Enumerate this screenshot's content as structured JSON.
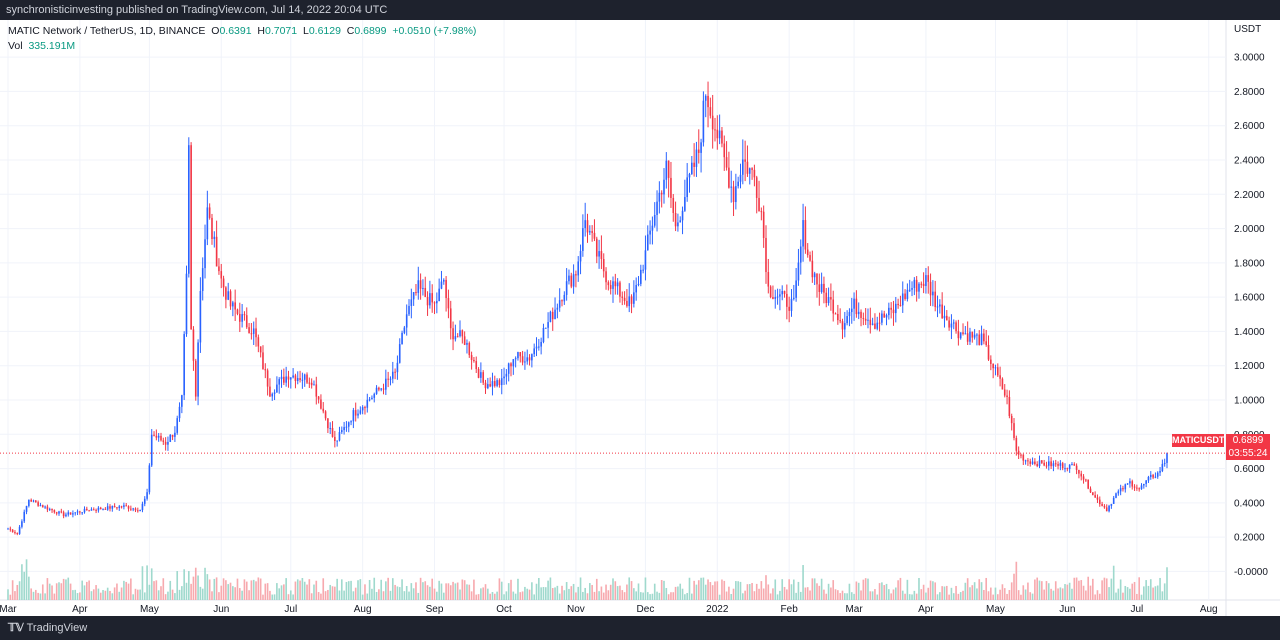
{
  "header": {
    "published_line": "synchronisticinvesting published on TradingView.com, Jul 14, 2022 20:04 UTC"
  },
  "legend": {
    "symbol_line_prefix": "MATIC Network / TetherUS, 1D, BINANCE",
    "ohlc": {
      "o_label": "O",
      "o": "0.6391",
      "h_label": "H",
      "h": "0.7071",
      "l_label": "L",
      "l": "0.6129",
      "c_label": "C",
      "c": "0.6899",
      "change": "+0.0510 (+7.98%)"
    },
    "vol_label": "Vol",
    "vol_value": "335.191M"
  },
  "axis": {
    "currency": "USDT"
  },
  "price_badge": {
    "symbol": "MATICUSDT",
    "price": "0.6899",
    "countdown": "03:55:24"
  },
  "footer": {
    "brand": "TradingView"
  },
  "colors": {
    "up": "#2962ff",
    "down": "#f23645",
    "vol_up": "#9fd9cd",
    "vol_down": "#f7a9ae",
    "grid": "#f0f3fa",
    "last_price_line": "#f23645"
  },
  "chart_data": {
    "type": "candlestick",
    "title": "MATIC Network / TetherUS, 1D, BINANCE",
    "ylabel": "USDT",
    "ylim": [
      -0.05,
      3.1
    ],
    "yticks": [
      3.0,
      2.8,
      2.6,
      2.4,
      2.2,
      2.0,
      1.8,
      1.6,
      1.4,
      1.2,
      1.0,
      0.8,
      0.6,
      0.4,
      0.2,
      0.0
    ],
    "ytick_labels": [
      "3.0000",
      "2.8000",
      "2.6000",
      "2.4000",
      "2.2000",
      "2.0000",
      "1.8000",
      "1.6000",
      "1.4000",
      "1.2000",
      "1.0000",
      "0.8000",
      "0.6000",
      "0.4000",
      "0.2000",
      "-0.0000"
    ],
    "x_tick_labels": [
      "Mar",
      "Apr",
      "May",
      "Jun",
      "Jul",
      "Aug",
      "Sep",
      "Oct",
      "Nov",
      "Dec",
      "2022",
      "Feb",
      "Mar",
      "Apr",
      "May",
      "Jun",
      "Jul",
      "Aug"
    ],
    "x_range": [
      "2021-03-01",
      "2022-08-05"
    ],
    "x_tick_dates": [
      "2021-03-01",
      "2021-04-01",
      "2021-05-01",
      "2021-06-01",
      "2021-07-01",
      "2021-08-01",
      "2021-09-01",
      "2021-10-01",
      "2021-11-01",
      "2021-12-01",
      "2022-01-01",
      "2022-02-01",
      "2022-03-01",
      "2022-04-01",
      "2022-05-01",
      "2022-06-01",
      "2022-07-01",
      "2022-08-01"
    ],
    "last_price": 0.6899,
    "close_anchors": [
      [
        "2021-03-01",
        0.25
      ],
      [
        "2021-03-05",
        0.22
      ],
      [
        "2021-03-10",
        0.42
      ],
      [
        "2021-03-16",
        0.38
      ],
      [
        "2021-03-25",
        0.33
      ],
      [
        "2021-04-05",
        0.36
      ],
      [
        "2021-04-20",
        0.38
      ],
      [
        "2021-04-27",
        0.36
      ],
      [
        "2021-04-30",
        0.45
      ],
      [
        "2021-05-02",
        0.8
      ],
      [
        "2021-05-08",
        0.75
      ],
      [
        "2021-05-12",
        0.82
      ],
      [
        "2021-05-15",
        1.0
      ],
      [
        "2021-05-17",
        1.7
      ],
      [
        "2021-05-18",
        2.45
      ],
      [
        "2021-05-19",
        1.4
      ],
      [
        "2021-05-21",
        1.05
      ],
      [
        "2021-05-23",
        1.65
      ],
      [
        "2021-05-26",
        2.1
      ],
      [
        "2021-06-01",
        1.7
      ],
      [
        "2021-06-05",
        1.55
      ],
      [
        "2021-06-15",
        1.4
      ],
      [
        "2021-06-22",
        1.05
      ],
      [
        "2021-06-30",
        1.15
      ],
      [
        "2021-07-10",
        1.12
      ],
      [
        "2021-07-20",
        0.75
      ],
      [
        "2021-07-28",
        0.92
      ],
      [
        "2021-08-05",
        1.02
      ],
      [
        "2021-08-15",
        1.15
      ],
      [
        "2021-08-20",
        1.5
      ],
      [
        "2021-08-25",
        1.65
      ],
      [
        "2021-09-01",
        1.55
      ],
      [
        "2021-09-05",
        1.7
      ],
      [
        "2021-09-08",
        1.4
      ],
      [
        "2021-09-14",
        1.35
      ],
      [
        "2021-09-22",
        1.1
      ],
      [
        "2021-09-30",
        1.1
      ],
      [
        "2021-10-05",
        1.25
      ],
      [
        "2021-10-12",
        1.25
      ],
      [
        "2021-10-20",
        1.45
      ],
      [
        "2021-10-27",
        1.65
      ],
      [
        "2021-11-01",
        1.75
      ],
      [
        "2021-11-05",
        2.05
      ],
      [
        "2021-11-10",
        1.85
      ],
      [
        "2021-11-15",
        1.7
      ],
      [
        "2021-11-25",
        1.55
      ],
      [
        "2021-12-01",
        1.85
      ],
      [
        "2021-12-05",
        2.1
      ],
      [
        "2021-12-10",
        2.35
      ],
      [
        "2021-12-14",
        2.0
      ],
      [
        "2021-12-18",
        2.2
      ],
      [
        "2021-12-24",
        2.45
      ],
      [
        "2021-12-27",
        2.8
      ],
      [
        "2022-01-02",
        2.5
      ],
      [
        "2022-01-08",
        2.2
      ],
      [
        "2022-01-12",
        2.4
      ],
      [
        "2022-01-17",
        2.3
      ],
      [
        "2022-01-20",
        2.1
      ],
      [
        "2022-01-23",
        1.65
      ],
      [
        "2022-01-28",
        1.6
      ],
      [
        "2022-02-03",
        1.55
      ],
      [
        "2022-02-07",
        2.0
      ],
      [
        "2022-02-10",
        1.8
      ],
      [
        "2022-02-14",
        1.65
      ],
      [
        "2022-02-20",
        1.55
      ],
      [
        "2022-02-24",
        1.45
      ],
      [
        "2022-03-01",
        1.55
      ],
      [
        "2022-03-10",
        1.45
      ],
      [
        "2022-03-18",
        1.52
      ],
      [
        "2022-03-25",
        1.65
      ],
      [
        "2022-04-01",
        1.7
      ],
      [
        "2022-04-06",
        1.55
      ],
      [
        "2022-04-15",
        1.4
      ],
      [
        "2022-04-25",
        1.35
      ],
      [
        "2022-05-03",
        1.1
      ],
      [
        "2022-05-06",
        1.0
      ],
      [
        "2022-05-10",
        0.7
      ],
      [
        "2022-05-14",
        0.65
      ],
      [
        "2022-05-20",
        0.63
      ],
      [
        "2022-05-28",
        0.62
      ],
      [
        "2022-06-05",
        0.61
      ],
      [
        "2022-06-13",
        0.43
      ],
      [
        "2022-06-18",
        0.36
      ],
      [
        "2022-06-22",
        0.45
      ],
      [
        "2022-06-28",
        0.52
      ],
      [
        "2022-07-02",
        0.48
      ],
      [
        "2022-07-07",
        0.55
      ],
      [
        "2022-07-10",
        0.57
      ],
      [
        "2022-07-13",
        0.639
      ],
      [
        "2022-07-14",
        0.6899
      ]
    ],
    "volume_value": "335.191M"
  }
}
